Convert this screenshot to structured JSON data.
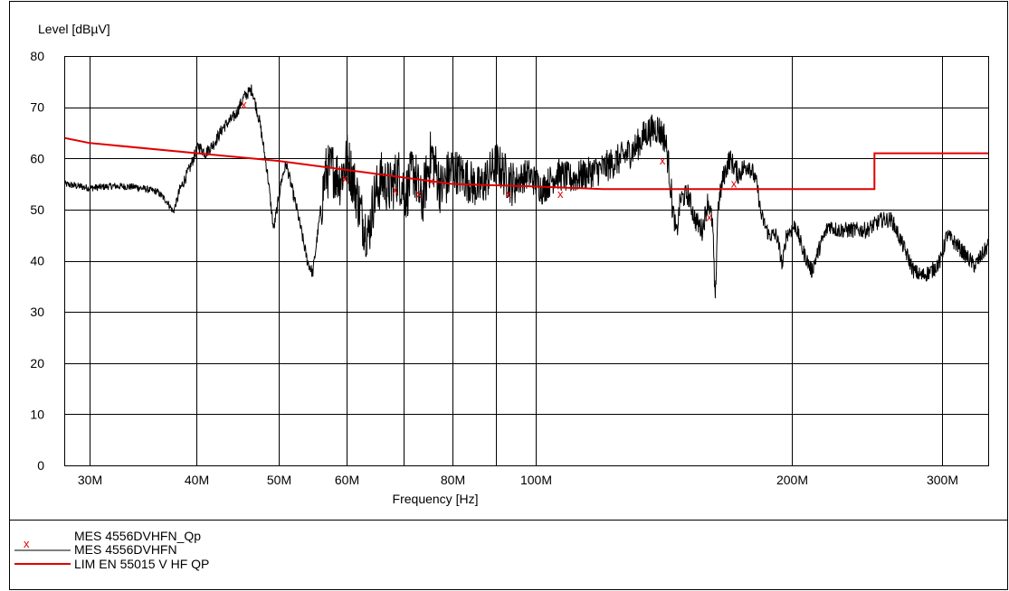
{
  "chart_data": {
    "type": "line",
    "xlabel": "Frequency [Hz]",
    "ylabel": "Level [dBµV]",
    "x_scale": "log",
    "xlim": [
      28000000,
      340000000
    ],
    "ylim": [
      0,
      80
    ],
    "grid": true,
    "y_ticks": [
      0,
      10,
      20,
      30,
      40,
      50,
      60,
      70,
      80
    ],
    "y_tick_labels": [
      "0",
      "10",
      "20",
      "30",
      "40",
      "50",
      "60",
      "70",
      "80"
    ],
    "x_ticks": [
      30000000,
      40000000,
      50000000,
      60000000,
      70000000,
      80000000,
      90000000,
      100000000,
      200000000,
      300000000
    ],
    "x_tick_labels": [
      "30M",
      "",
      "",
      "",
      "",
      "",
      "",
      "",
      "",
      ""
    ],
    "x_tick_labels_all": [
      "30M",
      "40M",
      "50M",
      "60M",
      "",
      "80M",
      "",
      "100M",
      "200M",
      "300M"
    ],
    "legend_placement": "bottom-left",
    "colors": {
      "measurement": "#000000",
      "limit": "#e00000",
      "qp_marker": "#e00000",
      "grid": "#000000"
    },
    "series": [
      {
        "name": "MES  4556DVHFN_Qp",
        "marker": "x",
        "color": "#e00000",
        "points": [
          [
            45500000,
            70.5
          ],
          [
            59800000,
            56
          ],
          [
            68500000,
            53.8
          ],
          [
            73000000,
            53
          ],
          [
            75500000,
            55.5
          ],
          [
            93000000,
            53
          ],
          [
            107000000,
            53
          ],
          [
            141000000,
            59.5
          ],
          [
            160000000,
            48.5
          ],
          [
            171000000,
            55
          ]
        ]
      },
      {
        "name": "MES  4556DVHFN",
        "line": "solid",
        "color": "#000000",
        "points": [
          [
            28000000,
            55
          ],
          [
            30000000,
            54.2
          ],
          [
            32000000,
            54.6
          ],
          [
            34000000,
            54.4
          ],
          [
            36000000,
            53.5
          ],
          [
            37000000,
            51.5
          ],
          [
            37600000,
            49.5
          ],
          [
            38300000,
            54
          ],
          [
            39300000,
            58
          ],
          [
            40200000,
            62.5
          ],
          [
            41000000,
            61
          ],
          [
            42000000,
            63
          ],
          [
            43000000,
            66
          ],
          [
            44500000,
            68.5
          ],
          [
            45500000,
            72
          ],
          [
            46500000,
            73.5
          ],
          [
            47500000,
            67
          ],
          [
            48500000,
            57
          ],
          [
            49300000,
            46
          ],
          [
            50400000,
            56
          ],
          [
            51000000,
            59
          ],
          [
            52500000,
            50
          ],
          [
            54000000,
            40
          ],
          [
            54800000,
            37.5
          ],
          [
            55700000,
            47
          ],
          [
            56700000,
            57
          ],
          [
            57800000,
            58
          ],
          [
            59000000,
            56
          ],
          [
            60200000,
            60
          ],
          [
            61500000,
            54
          ],
          [
            62700000,
            48
          ],
          [
            63700000,
            45
          ],
          [
            64600000,
            52
          ],
          [
            66000000,
            56
          ],
          [
            67500000,
            54
          ],
          [
            69000000,
            57
          ],
          [
            70500000,
            53
          ],
          [
            72000000,
            58
          ],
          [
            73500000,
            51
          ],
          [
            75500000,
            61
          ],
          [
            77500000,
            54
          ],
          [
            80000000,
            58
          ],
          [
            83000000,
            56
          ],
          [
            86000000,
            54
          ],
          [
            90000000,
            59
          ],
          [
            94000000,
            55
          ],
          [
            98000000,
            57
          ],
          [
            102000000,
            54
          ],
          [
            106000000,
            57
          ],
          [
            110000000,
            56
          ],
          [
            115000000,
            57
          ],
          [
            120000000,
            58
          ],
          [
            126000000,
            60
          ],
          [
            131000000,
            62
          ],
          [
            135000000,
            65
          ],
          [
            139000000,
            66
          ],
          [
            142000000,
            64
          ],
          [
            143500000,
            58
          ],
          [
            145000000,
            50
          ],
          [
            146500000,
            45
          ],
          [
            148000000,
            52
          ],
          [
            151000000,
            53
          ],
          [
            154000000,
            48
          ],
          [
            157000000,
            46
          ],
          [
            159500000,
            52
          ],
          [
            161500000,
            47
          ],
          [
            162600000,
            31
          ],
          [
            163700000,
            50
          ],
          [
            166000000,
            56
          ],
          [
            169000000,
            60
          ],
          [
            173000000,
            57
          ],
          [
            178000000,
            59
          ],
          [
            182000000,
            55
          ],
          [
            184000000,
            49
          ],
          [
            188000000,
            45
          ],
          [
            192000000,
            45
          ],
          [
            195000000,
            39
          ],
          [
            197000000,
            45
          ],
          [
            202000000,
            47
          ],
          [
            206000000,
            42
          ],
          [
            211000000,
            38
          ],
          [
            216000000,
            43
          ],
          [
            221000000,
            47
          ],
          [
            226000000,
            46
          ],
          [
            234000000,
            46
          ],
          [
            245000000,
            46
          ],
          [
            255000000,
            48
          ],
          [
            262000000,
            48
          ],
          [
            270000000,
            43
          ],
          [
            278000000,
            38
          ],
          [
            284000000,
            37
          ],
          [
            292000000,
            38
          ],
          [
            299000000,
            40
          ],
          [
            304000000,
            45
          ],
          [
            313000000,
            43
          ],
          [
            320000000,
            41
          ],
          [
            328000000,
            39
          ],
          [
            334000000,
            41
          ],
          [
            340000000,
            43
          ]
        ]
      },
      {
        "name": "LIM  EN 55015 V HF QP",
        "line": "solid",
        "color": "#e00000",
        "points": [
          [
            28000000,
            64
          ],
          [
            30000000,
            63
          ],
          [
            50000000,
            59.5
          ],
          [
            80000000,
            55
          ],
          [
            100000000,
            54.5
          ],
          [
            120000000,
            54
          ],
          [
            250000000,
            54
          ],
          [
            250000001,
            61
          ],
          [
            340000000,
            61
          ]
        ]
      }
    ]
  }
}
